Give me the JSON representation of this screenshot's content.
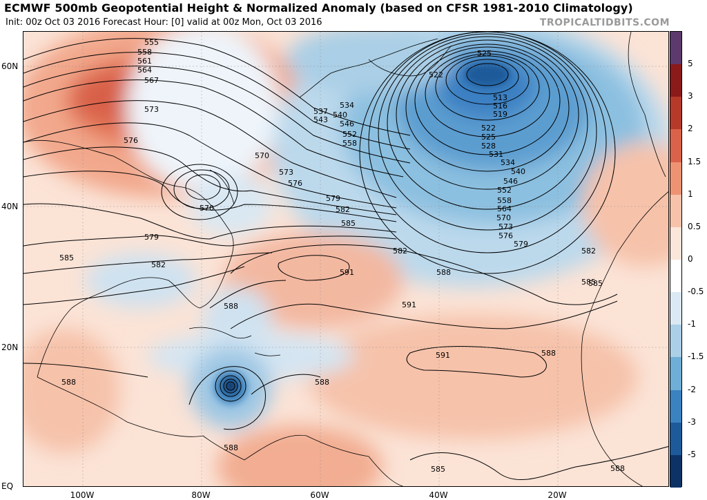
{
  "header": {
    "title": "ECMWF 500mb Geopotential Height & Normalized Anomaly (based on CFSR 1981-2010 Climatology)",
    "subtitle": "Init: 00z Oct 03 2016   Forecast Hour: [0]   valid at 00z Mon, Oct 03 2016",
    "brand": "TROPICALTIDBITS.COM"
  },
  "axes": {
    "lat_labels": [
      "60N",
      "40N",
      "20N",
      "EQ"
    ],
    "lon_labels": [
      "100W",
      "80W",
      "60W",
      "40W",
      "20W"
    ]
  },
  "colorbar": {
    "labels": [
      "5",
      "3",
      "2",
      "1.5",
      "1",
      "0.5",
      "0",
      "-0.5",
      "-1",
      "-1.5",
      "-2",
      "-3",
      "-5"
    ],
    "colors": [
      "#5c3a6e",
      "#8b1a1a",
      "#b53a2a",
      "#d9624a",
      "#ee9274",
      "#f6c2aa",
      "#fbe6da",
      "#ffffff",
      "#dbe9f4",
      "#aacfe6",
      "#6faed6",
      "#3a82c0",
      "#1d5a9a",
      "#0d3366"
    ]
  },
  "contour_labels": [
    "555",
    "558",
    "561",
    "564",
    "567",
    "573",
    "576",
    "570",
    "573",
    "576",
    "579",
    "582",
    "585",
    "588",
    "591",
    "570",
    "579",
    "582",
    "585",
    "582",
    "585",
    "588",
    "588",
    "591",
    "588",
    "585",
    "588",
    "588",
    "534",
    "537",
    "540",
    "543",
    "546",
    "552",
    "558",
    "525",
    "522",
    "513",
    "516",
    "519",
    "522",
    "525",
    "528",
    "531",
    "534",
    "540",
    "546",
    "552",
    "558",
    "564",
    "570",
    "573",
    "576",
    "579",
    "582",
    "585",
    "588",
    "591",
    "588"
  ]
}
